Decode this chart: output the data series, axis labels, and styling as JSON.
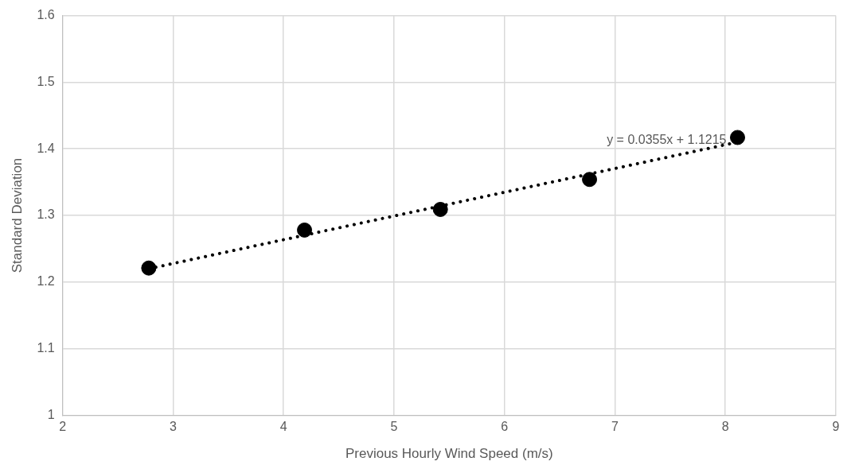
{
  "chart_data": {
    "type": "scatter",
    "xlabel": "Previous Hourly Wind Speed (m/s)",
    "ylabel": "Standard Deviation",
    "xlim": [
      2,
      9
    ],
    "xticks": [
      2,
      3,
      4,
      5,
      6,
      7,
      8,
      9
    ],
    "ylim": [
      1,
      1.6
    ],
    "yticks": [
      1,
      1.1,
      1.2,
      1.3,
      1.4,
      1.5,
      1.6
    ],
    "grid": true,
    "legend": false,
    "marker": "circle",
    "series": [
      {
        "color": "#000000",
        "x": [
          2.78,
          4.19,
          5.42,
          6.77,
          8.11
        ],
        "values": [
          1.221,
          1.278,
          1.309,
          1.354,
          1.417
        ]
      },
      {
        "type": "line",
        "color": "#000000",
        "line_style": "dotted",
        "marker": "none",
        "x": [
          2.78,
          8.11
        ],
        "values": [
          1.22,
          1.41
        ]
      }
    ],
    "annotations": [
      "y = 0.0355x + 1.1215"
    ]
  }
}
